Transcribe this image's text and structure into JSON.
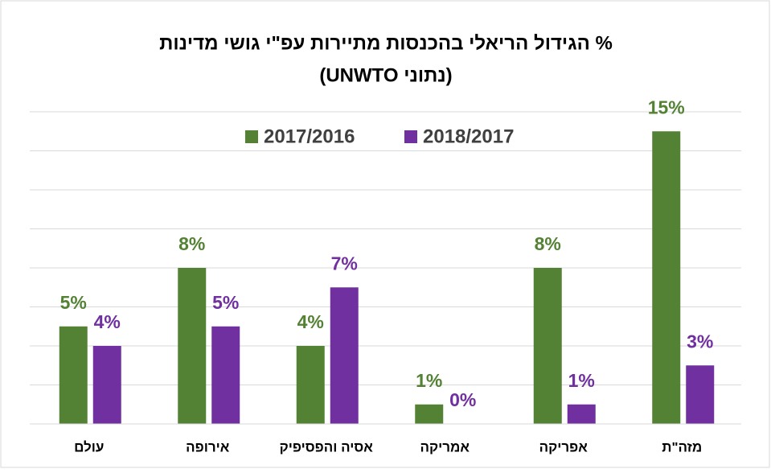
{
  "chart_data": {
    "type": "bar",
    "title": [
      "% הגידול הריאלי בהכנסות מתיירות עפ\"י גושי מדינות",
      "(נתוני UNWTO)"
    ],
    "categories": [
      "עולם",
      "אירופה",
      "אסיה והפסיפיק",
      "אמריקה",
      "אפריקה",
      "מזה\"ת"
    ],
    "series": [
      {
        "name": "2017/2016",
        "color": "#548235",
        "values": [
          5,
          8,
          4,
          1,
          8,
          15
        ],
        "value_labels": [
          "5%",
          "8%",
          "4%",
          "1%",
          "8%",
          "15%"
        ]
      },
      {
        "name": "2018/2017",
        "color": "#7030a0",
        "values": [
          4,
          5,
          7,
          0,
          1,
          3
        ],
        "value_labels": [
          "4%",
          "5%",
          "7%",
          "0%",
          "1%",
          "3%"
        ]
      }
    ],
    "ylim": [
      0,
      16
    ],
    "yticks": [
      0,
      2,
      4,
      6,
      8,
      10,
      12,
      14,
      16
    ],
    "grid": true,
    "legend": "top"
  }
}
